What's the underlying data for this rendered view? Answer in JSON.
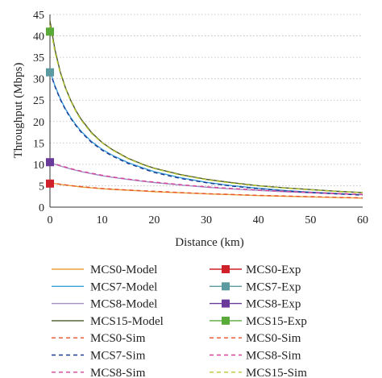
{
  "chart_data": {
    "type": "line",
    "xlabel": "Distance (km)",
    "ylabel": "Throughput (Mbps)",
    "xlim": [
      0,
      60
    ],
    "ylim": [
      0,
      45
    ],
    "xticks": [
      0,
      10,
      20,
      30,
      40,
      50,
      60
    ],
    "yticks": [
      0,
      5,
      10,
      15,
      20,
      25,
      30,
      35,
      40,
      45
    ],
    "grid": "horizontal dotted",
    "legend_position": "below",
    "x": [
      0,
      1,
      2,
      3,
      4,
      5,
      6,
      8,
      10,
      12,
      15,
      18,
      20,
      25,
      30,
      35,
      40,
      45,
      50,
      55,
      60
    ],
    "series": [
      {
        "name": "MCS0-Model",
        "style": "solid",
        "color": "#e8a33c",
        "values": [
          5.8,
          5.5,
          5.3,
          5.15,
          5.0,
          4.85,
          4.7,
          4.5,
          4.3,
          4.15,
          3.95,
          3.75,
          3.6,
          3.35,
          3.1,
          2.9,
          2.7,
          2.55,
          2.4,
          2.25,
          2.1
        ]
      },
      {
        "name": "MCS7-Model",
        "style": "solid",
        "color": "#3a9fd8",
        "values": [
          31.8,
          28.2,
          25.3,
          22.9,
          20.9,
          19.2,
          17.7,
          15.3,
          13.5,
          12.1,
          10.4,
          9.1,
          8.3,
          6.9,
          5.8,
          5.0,
          4.4,
          3.9,
          3.5,
          3.2,
          2.9
        ]
      },
      {
        "name": "MCS8-Model",
        "style": "solid",
        "color": "#a48fc4",
        "values": [
          10.4,
          10.0,
          9.6,
          9.25,
          8.9,
          8.6,
          8.3,
          7.8,
          7.35,
          6.95,
          6.45,
          6.0,
          5.75,
          5.15,
          4.65,
          4.25,
          3.9,
          3.6,
          3.35,
          3.1,
          2.9
        ]
      },
      {
        "name": "MCS15-Model",
        "style": "solid",
        "color": "#4a5a28",
        "values": [
          43.5,
          36.5,
          31.5,
          27.8,
          24.9,
          22.5,
          20.5,
          17.4,
          15.1,
          13.4,
          11.4,
          9.9,
          9.1,
          7.6,
          6.5,
          5.7,
          5.0,
          4.5,
          4.1,
          3.7,
          3.4
        ]
      },
      {
        "name": "MCS0-Sim",
        "style": "dashed",
        "color": "#e8502a",
        "values": [
          5.7,
          5.5,
          5.35,
          5.2,
          5.05,
          4.9,
          4.8,
          4.55,
          4.35,
          4.2,
          4.0,
          3.8,
          3.7,
          3.4,
          3.15,
          2.95,
          2.75,
          2.6,
          2.45,
          2.3,
          2.15
        ]
      },
      {
        "name": "MCS7-Sim",
        "style": "dashed",
        "color": "#1f3a93",
        "values": [
          31.6,
          28.0,
          25.1,
          22.7,
          20.7,
          19.0,
          17.5,
          15.1,
          13.3,
          11.9,
          10.2,
          8.9,
          8.1,
          6.7,
          5.7,
          4.9,
          4.3,
          3.8,
          3.4,
          3.1,
          2.8
        ]
      },
      {
        "name": "MCS8-Sim",
        "style": "dashed",
        "color": "#d6429a",
        "values": [
          10.5,
          10.1,
          9.7,
          9.35,
          9.0,
          8.7,
          8.4,
          7.9,
          7.45,
          7.05,
          6.55,
          6.1,
          5.85,
          5.25,
          4.75,
          4.35,
          4.0,
          3.7,
          3.45,
          3.2,
          3.0
        ]
      },
      {
        "name": "MCS15-Sim",
        "style": "dashed",
        "color": "#bcc832",
        "values": [
          42.5,
          36.0,
          31.2,
          27.6,
          24.7,
          22.3,
          20.3,
          17.2,
          15.0,
          13.3,
          11.3,
          9.8,
          9.0,
          7.5,
          6.4,
          5.6,
          4.95,
          4.45,
          4.05,
          3.65,
          3.35
        ]
      }
    ],
    "experimental": [
      {
        "name": "MCS0-Exp",
        "color": "#d0202a",
        "x": 0,
        "y": 5.5
      },
      {
        "name": "MCS7-Exp",
        "color": "#5a9aa0",
        "x": 0,
        "y": 31.5
      },
      {
        "name": "MCS8-Exp",
        "color": "#6a3a9a",
        "x": 0,
        "y": 10.5
      },
      {
        "name": "MCS15-Exp",
        "color": "#5aaa3a",
        "x": 0,
        "y": 41.0
      }
    ],
    "legend_left": [
      "MCS0-Model",
      "MCS7-Model",
      "MCS8-Model",
      "MCS15-Model",
      "MCS0-Sim",
      "MCS7-Sim",
      "MCS8-Sim",
      "MCS15-Sim"
    ],
    "legend_right": [
      "MCS0-Exp",
      "MCS7-Exp",
      "MCS8-Exp",
      "MCS15-Exp",
      "MCS0-Sim",
      "MCS8-Sim",
      "MCS15-Sim"
    ]
  }
}
